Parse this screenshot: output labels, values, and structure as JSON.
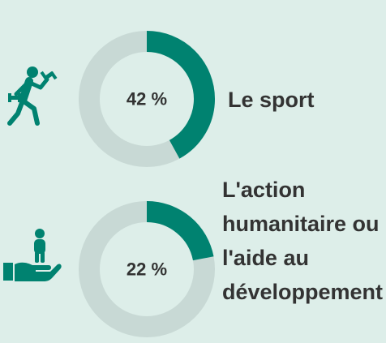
{
  "chart_data": [
    {
      "type": "pie",
      "title": "",
      "categories": [
        "Le sport"
      ],
      "values": [
        42
      ],
      "percent_label": "42 %",
      "label_lines": [
        "Le sport"
      ],
      "icon": "running-athlete-icon"
    },
    {
      "type": "pie",
      "title": "",
      "categories": [
        "L'action humanitaire ou l'aide au développement"
      ],
      "values": [
        22
      ],
      "percent_label": "22 %",
      "label_lines": [
        "L'action",
        "humanitaire ou",
        "l'aide au",
        "développement"
      ],
      "icon": "hand-holding-person-icon"
    }
  ],
  "colors": {
    "background": "#ddeee9",
    "accent": "#008270",
    "track": "#c8d9d5",
    "text": "#333333"
  }
}
